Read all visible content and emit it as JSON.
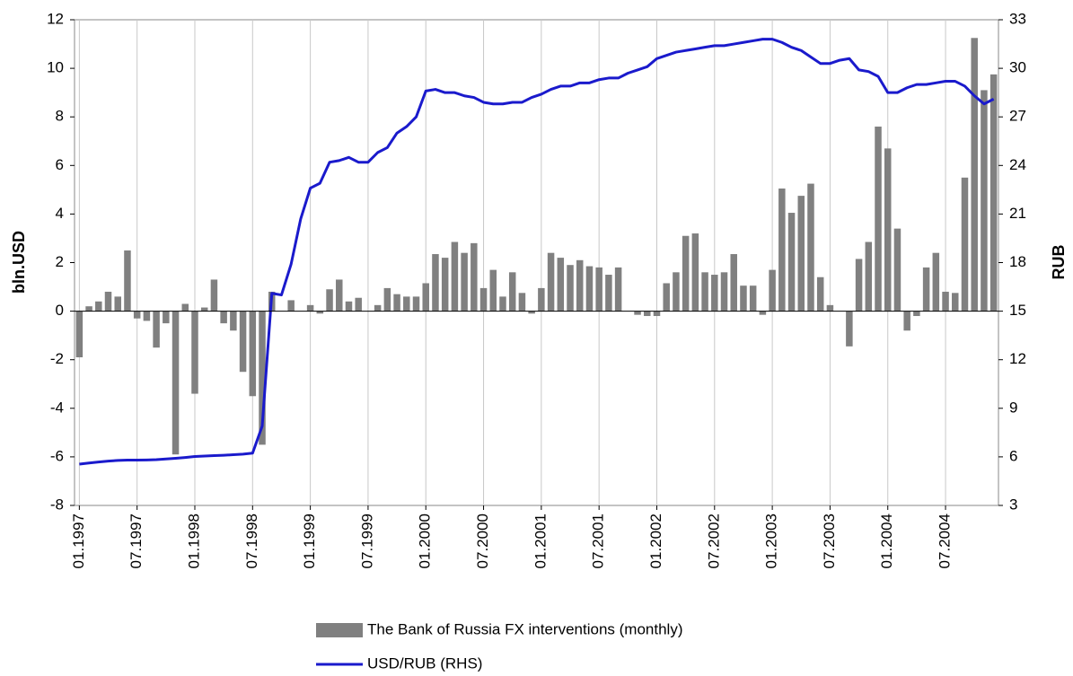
{
  "chart_data": {
    "type": "combo",
    "categories": [
      "01.1997",
      null,
      null,
      null,
      null,
      null,
      "07.1997",
      null,
      null,
      null,
      null,
      null,
      "01.1998",
      null,
      null,
      null,
      null,
      null,
      "07.1998",
      null,
      null,
      null,
      null,
      null,
      "01.1999",
      null,
      null,
      null,
      null,
      null,
      "07.1999",
      null,
      null,
      null,
      null,
      null,
      "01.2000",
      null,
      null,
      null,
      null,
      null,
      "07.2000",
      null,
      null,
      null,
      null,
      null,
      "01.2001",
      null,
      null,
      null,
      null,
      null,
      "07.2001",
      null,
      null,
      null,
      null,
      null,
      "01.2002",
      null,
      null,
      null,
      null,
      null,
      "07.2002",
      null,
      null,
      null,
      null,
      null,
      "01.2003",
      null,
      null,
      null,
      null,
      null,
      "07.2003",
      null,
      null,
      null,
      null,
      null,
      "01.2004",
      null,
      null,
      null,
      null,
      null,
      "07.2004",
      null,
      null,
      null,
      null,
      null
    ],
    "series": [
      {
        "name": "The Bank of Russia FX interventions (monthly)",
        "type": "bar",
        "color": "#808080",
        "values": [
          -1.9,
          0.2,
          0.4,
          0.8,
          0.6,
          2.5,
          -0.3,
          -0.4,
          -1.5,
          -0.5,
          -5.9,
          0.3,
          -3.4,
          0.15,
          1.3,
          -0.5,
          -0.8,
          -2.5,
          -3.5,
          -5.5,
          0.8,
          0,
          0.45,
          0,
          0.25,
          -0.1,
          0.9,
          1.3,
          0.4,
          0.55,
          0,
          0.25,
          0.95,
          0.7,
          0.6,
          0.6,
          1.15,
          2.35,
          2.2,
          2.85,
          2.4,
          2.8,
          0.95,
          1.7,
          0.6,
          1.6,
          0.75,
          -0.1,
          0.95,
          2.4,
          2.2,
          1.9,
          2.1,
          1.85,
          1.8,
          1.5,
          1.8,
          0,
          -0.15,
          -0.2,
          -0.2,
          1.15,
          1.6,
          3.1,
          3.2,
          1.6,
          1.5,
          1.6,
          2.35,
          1.05,
          1.05,
          -0.15,
          1.7,
          5.05,
          4.05,
          4.75,
          5.25,
          1.4,
          0.25,
          0,
          -1.45,
          2.15,
          2.85,
          7.6,
          6.7,
          3.4,
          -0.8,
          -0.2,
          1.8,
          2.4,
          0.8,
          0.75,
          5.5,
          11.25,
          9.1,
          9.75
        ]
      },
      {
        "name": "USD/RUB (RHS)",
        "type": "line",
        "axis": "y2",
        "color": "#1a1acc",
        "values": [
          5.55,
          5.62,
          5.68,
          5.74,
          5.78,
          5.8,
          5.8,
          5.81,
          5.83,
          5.87,
          5.91,
          5.96,
          6.02,
          6.05,
          6.08,
          6.1,
          6.13,
          6.17,
          6.23,
          7.9,
          16.1,
          16,
          17.9,
          20.7,
          22.6,
          22.9,
          24.2,
          24.3,
          24.5,
          24.2,
          24.2,
          24.8,
          25.1,
          26,
          26.4,
          27,
          28.6,
          28.7,
          28.5,
          28.5,
          28.3,
          28.2,
          27.9,
          27.8,
          27.8,
          27.9,
          27.9,
          28.2,
          28.4,
          28.7,
          28.9,
          28.9,
          29.1,
          29.1,
          29.3,
          29.4,
          29.4,
          29.7,
          29.9,
          30.1,
          30.6,
          30.8,
          31,
          31.1,
          31.2,
          31.3,
          31.4,
          31.4,
          31.5,
          31.6,
          31.7,
          31.8,
          31.8,
          31.6,
          31.3,
          31.1,
          30.7,
          30.3,
          30.3,
          30.5,
          30.6,
          29.9,
          29.8,
          29.5,
          28.5,
          28.5,
          28.8,
          29,
          29,
          29.1,
          29.2,
          29.2,
          28.9,
          28.3,
          27.8,
          28.1
        ]
      }
    ],
    "y_label": "bln.USD",
    "y2_label": "RUB",
    "ylim": [
      -8,
      12
    ],
    "yticks": [
      -8,
      -6,
      -4,
      -2,
      0,
      2,
      4,
      6,
      8,
      10,
      12
    ],
    "y2lim": [
      3,
      33
    ],
    "y2ticks": [
      3,
      6,
      9,
      12,
      15,
      18,
      21,
      24,
      27,
      30,
      33
    ],
    "grid": true,
    "legend": "bottom"
  }
}
